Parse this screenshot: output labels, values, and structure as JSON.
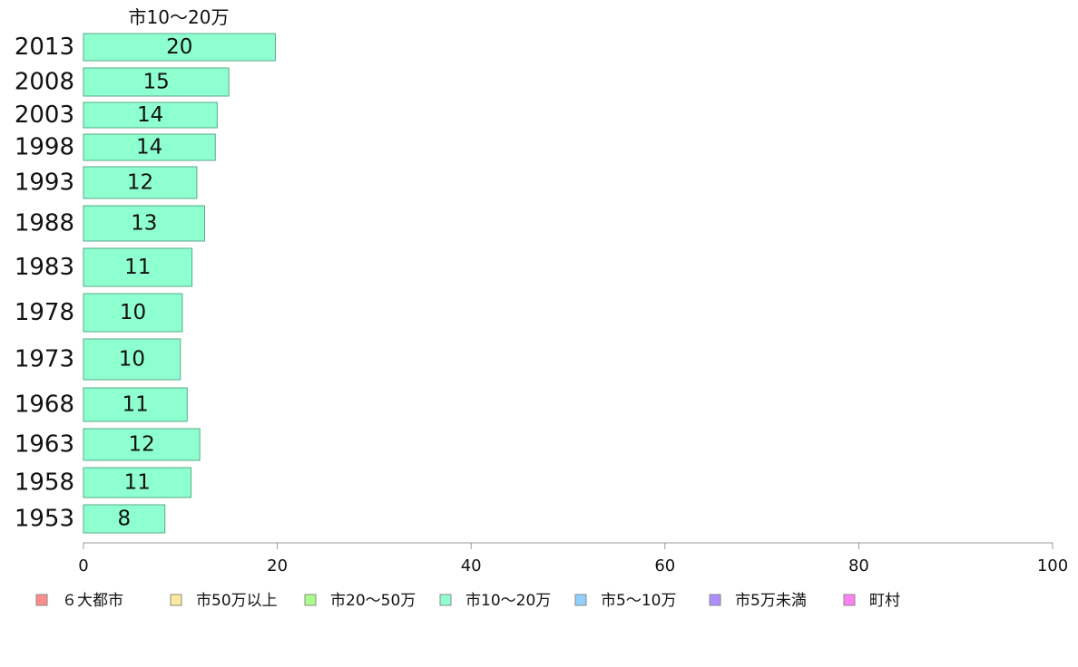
{
  "chart_data": {
    "type": "bar",
    "orientation": "horizontal",
    "title": "",
    "series_title": "市10〜20万",
    "xlabel": "",
    "ylabel": "",
    "xlim": [
      0,
      100
    ],
    "xticks": [
      "0",
      "20",
      "40",
      "60",
      "80",
      "100"
    ],
    "grid": false,
    "legend_position": "bottom",
    "categories": [
      "2013",
      "2008",
      "2003",
      "1998",
      "1993",
      "1988",
      "1983",
      "1978",
      "1973",
      "1968",
      "1963",
      "1958",
      "1953"
    ],
    "values": [
      19.8,
      15.0,
      13.8,
      13.6,
      11.7,
      12.5,
      11.2,
      10.2,
      10.0,
      10.7,
      12.0,
      11.1,
      8.4
    ],
    "data_labels": [
      "20",
      "15",
      "14",
      "14",
      "12",
      "13",
      "11",
      "10",
      "10",
      "11",
      "12",
      "11",
      "8"
    ],
    "bar_color": "#8effcf",
    "bar_stroke": "#5aa98a",
    "legend": [
      {
        "label": "６大都市",
        "color": "#ff8b8b"
      },
      {
        "label": "市50万以上",
        "color": "#ffe99a"
      },
      {
        "label": "市20〜50万",
        "color": "#aaff88"
      },
      {
        "label": "市10〜20万",
        "color": "#8effcf"
      },
      {
        "label": "市5〜10万",
        "color": "#8fd0ff"
      },
      {
        "label": "市5万未満",
        "color": "#b08cff"
      },
      {
        "label": "町村",
        "color": "#ff7ff5"
      }
    ]
  }
}
